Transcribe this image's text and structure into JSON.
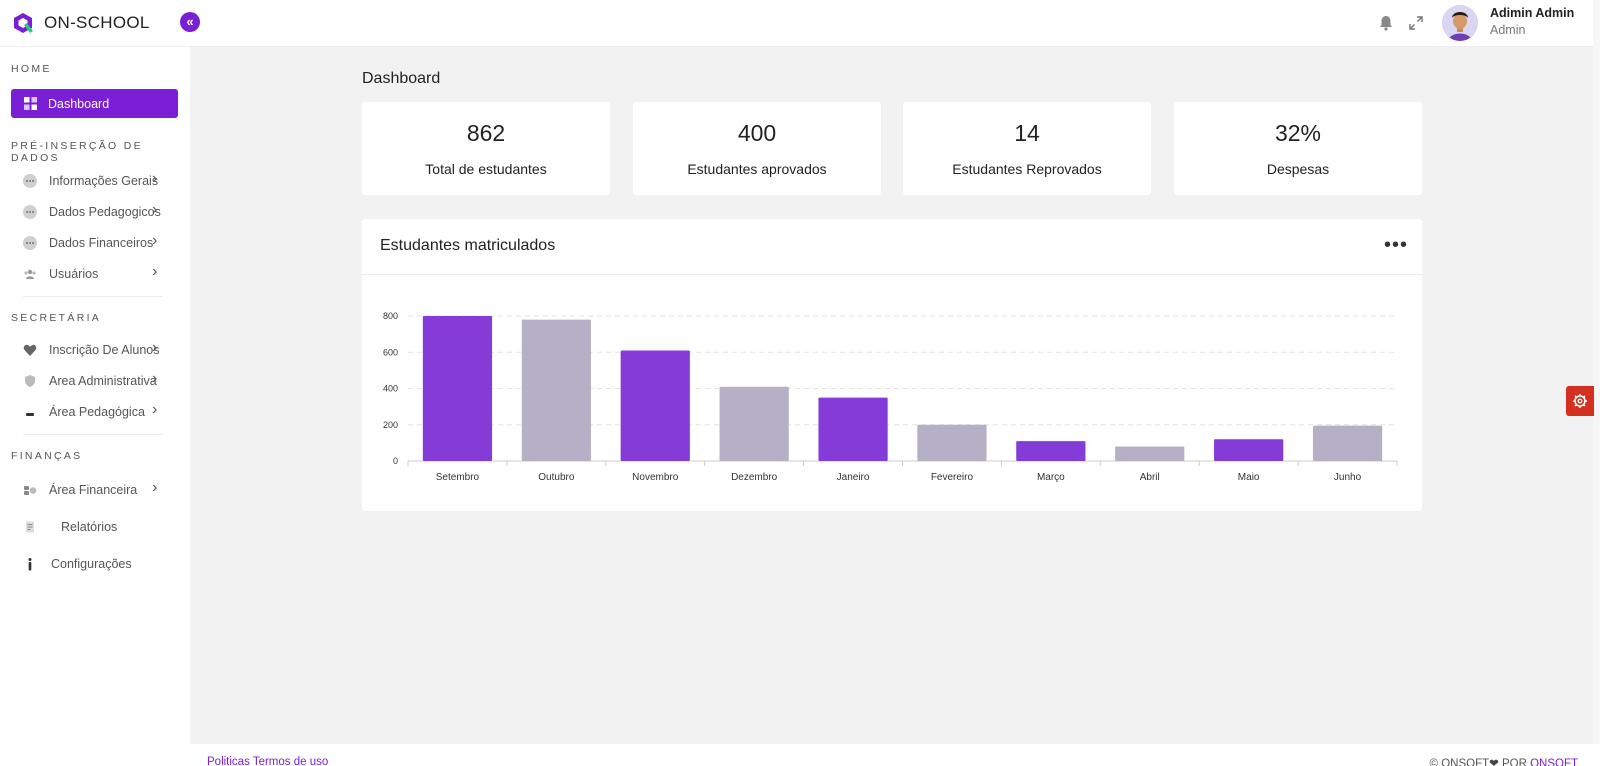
{
  "header": {
    "brand": "ON-SCHOOL",
    "collapse_icon": "«",
    "user_name": "Adimin Admin",
    "user_role": "Admin"
  },
  "sidebar": {
    "sections": {
      "home": "HOME",
      "pre": "PRÉ-INSERÇÃO DE DADOS",
      "secretaria": "SECRETÁRIA",
      "financas": "FINANÇAS"
    },
    "active": "Dashboard",
    "items": {
      "info": "Informações Gerais",
      "pedag": "Dados Pedagogicos",
      "finan": "Dados Financeiros",
      "users": "Usuários",
      "inscr": "Inscrição De Alunos",
      "admin": "Area Administrativa",
      "area_ped": "Área Pedagógica",
      "area_fin": "Área Financeira",
      "relat": "Relatórios",
      "config": "Configurações"
    }
  },
  "main": {
    "title": "Dashboard",
    "stats": [
      {
        "value": "862",
        "label": "Total de estudantes"
      },
      {
        "value": "400",
        "label": "Estudantes aprovados"
      },
      {
        "value": "14",
        "label": "Estudantes Reprovados"
      },
      {
        "value": "32%",
        "label": "Despesas"
      }
    ],
    "chart_title": "Estudantes matriculados",
    "more": "•••"
  },
  "chart_data": {
    "type": "bar",
    "categories": [
      "Setembro",
      "Outubro",
      "Novembro",
      "Dezembro",
      "Janeiro",
      "Fevereiro",
      "Março",
      "Abril",
      "Maio",
      "Junho"
    ],
    "values": [
      800,
      780,
      610,
      410,
      350,
      200,
      110,
      80,
      120,
      195
    ],
    "bar_colors": [
      "#843bd8",
      "#b5b0c6",
      "#843bd8",
      "#b5b0c6",
      "#843bd8",
      "#b5b0c6",
      "#843bd8",
      "#b5b0c6",
      "#843bd8",
      "#b5b0c6"
    ],
    "yticks": [
      0,
      200,
      400,
      600,
      800
    ],
    "ylim": [
      0,
      800
    ],
    "grid": true
  },
  "footer": {
    "politicas": "Politicas",
    "termos": "Termos de uso",
    "copyright": "© ONSOFT",
    "por": " POR ",
    "onsoft": "ONSOFT"
  },
  "colors": {
    "accent": "#7a1fd6",
    "bar_primary": "#843bd8",
    "bar_secondary": "#b5b0c6",
    "settings": "#d42f1f"
  },
  "icons": {
    "logo": "logo-icon",
    "bell": "bell-icon",
    "expand": "expand-icon",
    "settings": "gear-icon"
  }
}
